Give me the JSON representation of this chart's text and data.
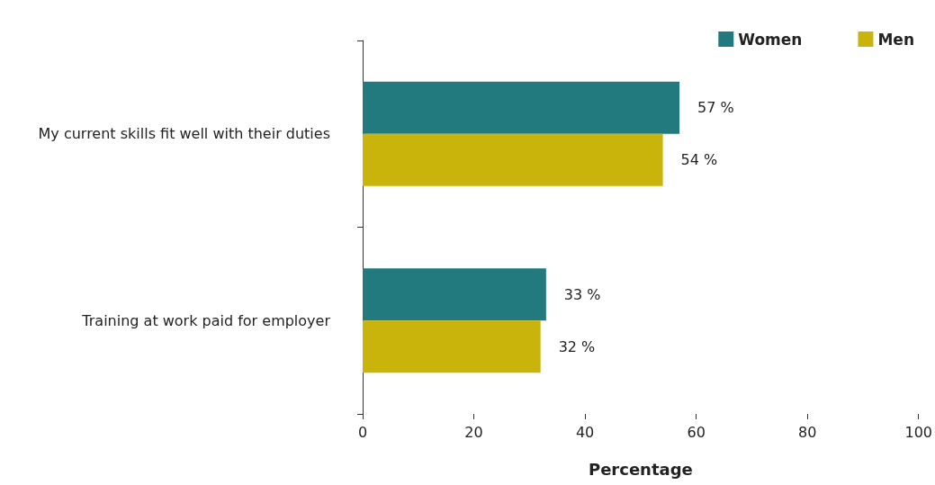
{
  "chart_data": {
    "type": "bar",
    "orientation": "horizontal",
    "categories": [
      "My current skills fit well with their duties",
      "Training at work paid for employer"
    ],
    "series": [
      {
        "name": "Women",
        "color": "#237a7e",
        "values": [
          57,
          33
        ],
        "value_labels": [
          "57 %",
          "33 %"
        ]
      },
      {
        "name": "Men",
        "color": "#c8b40a",
        "values": [
          54,
          32
        ],
        "value_labels": [
          "54 %",
          "32 %"
        ]
      }
    ],
    "xlabel": "Percentage",
    "xlim": [
      0,
      100
    ],
    "xticks": [
      0,
      20,
      40,
      60,
      80,
      100
    ],
    "grid": false,
    "legend": "top right"
  }
}
